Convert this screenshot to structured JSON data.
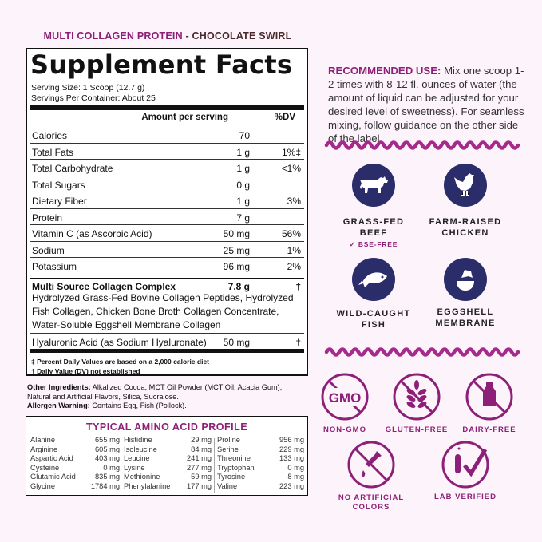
{
  "product": {
    "name": "MULTI COLLAGEN PROTEIN",
    "flavor": " - CHOCOLATE SWIRL"
  },
  "facts": {
    "title": "Supplement Facts",
    "serving_size": "Serving Size: 1 Scoop (12.7 g)",
    "servings": "Servings Per Container: About 25",
    "col_amount": "Amount per serving",
    "col_dv": "%DV",
    "rows": [
      {
        "name": "Calories",
        "amount": "70",
        "dv": ""
      },
      {
        "name": "Total Fats",
        "amount": "1 g",
        "dv": "1%‡"
      },
      {
        "name": "Total Carbohydrate",
        "amount": "1 g",
        "dv": "<1%"
      },
      {
        "name": "Total Sugars",
        "amount": "0 g",
        "dv": ""
      },
      {
        "name": "Dietary Fiber",
        "amount": "1 g",
        "dv": "3%"
      },
      {
        "name": "Protein",
        "amount": "7 g",
        "dv": ""
      },
      {
        "name": "Vitamin C (as Ascorbic Acid)",
        "amount": "50 mg",
        "dv": "56%"
      },
      {
        "name": "Sodium",
        "amount": "25 mg",
        "dv": "1%"
      },
      {
        "name": "Potassium",
        "amount": "96 mg",
        "dv": "2%"
      }
    ],
    "complex": {
      "name": "Multi Source Collagen Complex",
      "amount": "7.8 g",
      "dv": "†",
      "desc": "Hydrolyzed Grass-Fed Bovine Collagen Peptides, Hydrolyzed Fish Collagen, Chicken Bone Broth Collagen Concentrate, Water-Soluble Eggshell Membrane Collagen"
    },
    "hyaluronic": {
      "name": "Hyaluronic Acid (as Sodium Hyaluronate)",
      "amount": "50 mg",
      "dv": "†"
    },
    "foot1": "‡ Percent Daily Values are based on a 2,000 calorie diet",
    "foot2": "† Daily Value (DV) not established"
  },
  "other": {
    "label": "Other Ingredients:",
    "text": " Alkalized Cocoa, MCT Oil Powder (MCT Oil, Acacia Gum), Natural and Artificial Flavors, Silica, Sucralose.",
    "allergen_label": "Allergen Warning:",
    "allergen": " Contains Egg, Fish (Pollock)."
  },
  "amino": {
    "title": "TYPICAL AMINO ACID PROFILE",
    "columns": [
      [
        [
          "Alanine",
          "655 mg"
        ],
        [
          "Arginine",
          "605 mg"
        ],
        [
          "Aspartic Acid",
          "403 mg"
        ],
        [
          "Cysteine",
          "0 mg"
        ],
        [
          "Glutamic Acid",
          "835 mg"
        ],
        [
          "Glycine",
          "1784 mg"
        ]
      ],
      [
        [
          "Histidine",
          "29 mg"
        ],
        [
          "Isoleucine",
          "84 mg"
        ],
        [
          "Leucine",
          "241 mg"
        ],
        [
          "Lysine",
          "277 mg"
        ],
        [
          "Methionine",
          "59 mg"
        ],
        [
          "Phenylalanine",
          "177 mg"
        ]
      ],
      [
        [
          "Proline",
          "956 mg"
        ],
        [
          "Serine",
          "229 mg"
        ],
        [
          "Threonine",
          "133 mg"
        ],
        [
          "Tryptophan",
          "0 mg"
        ],
        [
          "Tyrosine",
          "8 mg"
        ],
        [
          "Valine",
          "223 mg"
        ]
      ]
    ]
  },
  "recommended": {
    "label": "RECOMMENDED USE:",
    "text": " Mix one scoop 1-2 times with 8-12 fl. ounces of water (the amount of liquid can be adjusted for your desired level of sweetness). For seamless mixing, follow guidance on the other side of the label."
  },
  "sources": [
    {
      "label1": "GRASS-FED",
      "label2": "BEEF",
      "note": "✓ BSE-FREE",
      "icon": "cow-icon"
    },
    {
      "label1": "FARM-RAISED",
      "label2": "CHICKEN",
      "icon": "chicken-icon"
    },
    {
      "label1": "WILD-CAUGHT",
      "label2": "FISH",
      "icon": "fish-icon"
    },
    {
      "label1": "EGGSHELL",
      "label2": "MEMBRANE",
      "icon": "egg-icon"
    }
  ],
  "badges": [
    {
      "label": "NON-GMO",
      "icon": "gmo-icon",
      "text": "GMO"
    },
    {
      "label": "GLUTEN-FREE",
      "icon": "wheat-icon"
    },
    {
      "label": "DAIRY-FREE",
      "icon": "milk-bottle-icon"
    },
    {
      "label1": "NO ARTIFICIAL",
      "label2": "COLORS",
      "icon": "dropper-icon"
    },
    {
      "label": "LAB VERIFIED",
      "icon": "test-tube-check-icon"
    }
  ],
  "colors": {
    "accent": "#8e1f78",
    "navy": "#2b2d6b",
    "background": "#fdf3fb"
  }
}
